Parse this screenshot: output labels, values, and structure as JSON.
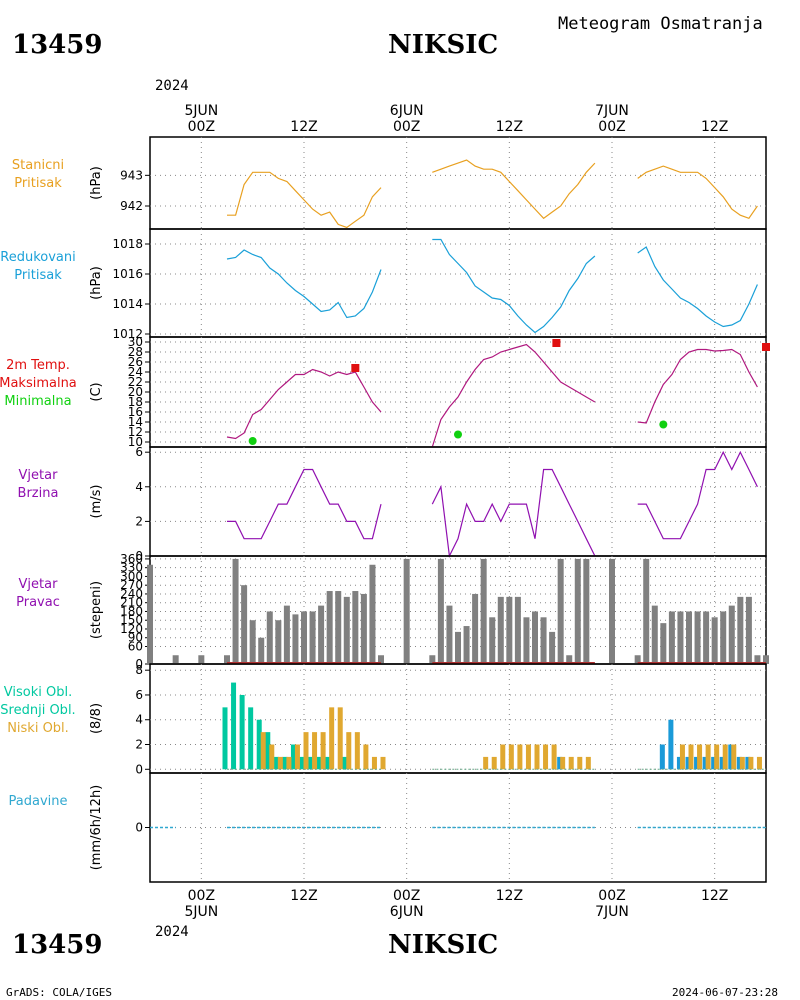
{
  "header": {
    "station_id": "13459",
    "station_name": "NIKSIC",
    "subtitle": "Meteogram Osmatranja",
    "year": "2024"
  },
  "footer": {
    "credit": "GrADS: COLA/IGES",
    "timestamp": "2024-06-07-23:28"
  },
  "time_axis": {
    "hours_range": [
      -6,
      66
    ],
    "top": [
      {
        "hour": 0,
        "lines": [
          "5JUN",
          "00Z"
        ]
      },
      {
        "hour": 12,
        "lines": [
          "12Z"
        ]
      },
      {
        "hour": 24,
        "lines": [
          "6JUN",
          "00Z"
        ]
      },
      {
        "hour": 36,
        "lines": [
          "12Z"
        ]
      },
      {
        "hour": 48,
        "lines": [
          "7JUN",
          "00Z"
        ]
      },
      {
        "hour": 60,
        "lines": [
          "12Z"
        ]
      }
    ],
    "bottom": [
      {
        "hour": 0,
        "lines": [
          "00Z",
          "5JUN"
        ]
      },
      {
        "hour": 12,
        "lines": [
          "12Z"
        ]
      },
      {
        "hour": 24,
        "lines": [
          "00Z",
          "6JUN"
        ]
      },
      {
        "hour": 36,
        "lines": [
          "12Z"
        ]
      },
      {
        "hour": 48,
        "lines": [
          "00Z",
          "7JUN"
        ]
      },
      {
        "hour": 60,
        "lines": [
          "12Z"
        ]
      }
    ]
  },
  "colors": {
    "pressure_station": "#e8a020",
    "pressure_reduced": "#1aa0d8",
    "temperature": "#b0187f",
    "tmax": "#e01010",
    "tmin": "#10d010",
    "wind": "#9010b0",
    "direction_bar": "#808080",
    "direction_base": "#b03030",
    "cloud_high": "#00c8a0",
    "cloud_mid": "#1a9ad8",
    "cloud_low": "#e0a830",
    "precip": "#30a8d0"
  },
  "chart_data": [
    {
      "id": "station-pressure",
      "type": "line",
      "labels": [
        "Stanicni",
        "Pritisak"
      ],
      "unit": "(hPa)",
      "ylim": [
        941.25,
        944.25
      ],
      "yticks": [
        942,
        943
      ],
      "series": [
        {
          "x": [
            3,
            4,
            5,
            6,
            7,
            8,
            9,
            10,
            11,
            12,
            13,
            14,
            15,
            16,
            17,
            18,
            19,
            20,
            21
          ],
          "y": [
            941.7,
            941.7,
            942.7,
            943.1,
            943.1,
            943.1,
            942.9,
            942.8,
            942.5,
            942.2,
            941.9,
            941.7,
            941.8,
            941.4,
            941.3,
            941.5,
            941.7,
            942.3,
            942.6
          ]
        },
        {
          "x": [
            27,
            28,
            29,
            30,
            31,
            32,
            33,
            34,
            35,
            36,
            37,
            38,
            39,
            40,
            41,
            42,
            43,
            44,
            45,
            46
          ],
          "y": [
            943.1,
            943.2,
            943.3,
            943.4,
            943.5,
            943.3,
            943.2,
            943.2,
            943.1,
            942.8,
            942.5,
            942.2,
            941.9,
            941.6,
            941.8,
            942.0,
            942.4,
            942.7,
            943.1,
            943.4
          ]
        },
        {
          "x": [
            51,
            52,
            53,
            54,
            55,
            56,
            57,
            58,
            59,
            60,
            61,
            62,
            63,
            64,
            65
          ],
          "y": [
            942.9,
            943.1,
            943.2,
            943.3,
            943.2,
            943.1,
            943.1,
            943.1,
            942.9,
            942.6,
            942.3,
            941.9,
            941.7,
            941.6,
            942.0
          ]
        }
      ]
    },
    {
      "id": "reduced-pressure",
      "type": "line",
      "labels": [
        "Redukovani",
        "Pritisak"
      ],
      "unit": "(hPa)",
      "ylim": [
        1011.8,
        1019
      ],
      "yticks": [
        1012,
        1014,
        1016,
        1018
      ],
      "series": [
        {
          "x": [
            3,
            4,
            5,
            6,
            7,
            8,
            9,
            10,
            11,
            12,
            13,
            14,
            15,
            16,
            17,
            18,
            19,
            20,
            21
          ],
          "y": [
            1017.0,
            1017.1,
            1017.6,
            1017.3,
            1017.1,
            1016.4,
            1016.0,
            1015.4,
            1014.9,
            1014.5,
            1014.0,
            1013.5,
            1013.6,
            1014.1,
            1013.1,
            1013.2,
            1013.7,
            1014.8,
            1016.3
          ]
        },
        {
          "x": [
            27,
            28,
            29,
            30,
            31,
            32,
            33,
            34,
            35,
            36,
            37,
            38,
            39,
            40,
            41,
            42,
            43,
            44,
            45,
            46
          ],
          "y": [
            1018.3,
            1018.3,
            1017.3,
            1016.7,
            1016.1,
            1015.2,
            1014.8,
            1014.4,
            1014.3,
            1013.9,
            1013.2,
            1012.6,
            1012.1,
            1012.5,
            1013.1,
            1013.8,
            1014.9,
            1015.7,
            1016.7,
            1017.2
          ]
        },
        {
          "x": [
            51,
            52,
            53,
            54,
            55,
            56,
            57,
            58,
            59,
            60,
            61,
            62,
            63,
            64,
            65
          ],
          "y": [
            1017.4,
            1017.8,
            1016.5,
            1015.6,
            1015.0,
            1014.4,
            1014.1,
            1013.7,
            1013.2,
            1012.8,
            1012.5,
            1012.6,
            1012.9,
            1014.0,
            1015.3
          ]
        }
      ]
    },
    {
      "id": "temperature",
      "type": "line",
      "labels": [
        "2m Temp.",
        "Maksimalna",
        "Minimalna"
      ],
      "unit": "(C)",
      "ylim": [
        9,
        31
      ],
      "yticks": [
        10,
        12,
        14,
        16,
        18,
        20,
        22,
        24,
        26,
        28,
        30
      ],
      "series": [
        {
          "x": [
            3,
            4,
            5,
            6,
            7,
            8,
            9,
            10,
            11,
            12,
            13,
            14,
            15,
            16,
            17,
            18,
            19,
            20,
            21
          ],
          "y": [
            11.0,
            10.7,
            11.8,
            15.5,
            16.5,
            18.5,
            20.5,
            22.0,
            23.5,
            23.5,
            24.5,
            24.0,
            23.2,
            24.0,
            23.5,
            24.0,
            21.0,
            18.0,
            16.0
          ]
        },
        {
          "x": [
            27,
            28,
            29,
            30,
            31,
            32,
            33,
            34,
            35,
            36,
            37,
            38,
            39,
            40,
            41,
            42,
            43,
            44,
            45,
            46
          ],
          "y": [
            8.0,
            14.5,
            17.0,
            19.0,
            22.0,
            24.5,
            26.5,
            27.0,
            28.0,
            28.5,
            29.0,
            29.5,
            28.0,
            26.0,
            24.0,
            22.0,
            21.0,
            20.0,
            19.0,
            18.0
          ]
        },
        {
          "x": [
            51,
            52,
            53,
            54,
            55,
            56,
            57,
            58,
            59,
            60,
            61,
            62,
            63,
            64,
            65
          ],
          "y": [
            14.0,
            13.8,
            18.0,
            21.5,
            23.5,
            26.5,
            28.0,
            28.5,
            28.5,
            28.2,
            28.3,
            28.5,
            27.5,
            24.0,
            21.0
          ]
        }
      ],
      "tmax": [
        {
          "x": 18,
          "y": 24.8
        },
        {
          "x": 41.5,
          "y": 29.8
        },
        {
          "x": 66,
          "y": 29
        }
      ],
      "tmin": [
        {
          "x": 6,
          "y": 10.2
        },
        {
          "x": 30,
          "y": 11.5
        },
        {
          "x": 54,
          "y": 13.5
        }
      ]
    },
    {
      "id": "wind-speed",
      "type": "line",
      "labels": [
        "Vjetar",
        "Brzina"
      ],
      "unit": "(m/s)",
      "ylim": [
        0,
        6.3
      ],
      "yticks": [
        0,
        2,
        4,
        6
      ],
      "series": [
        {
          "x": [
            3,
            4,
            5,
            6,
            7,
            8,
            9,
            10,
            11,
            12,
            13,
            14,
            15,
            16,
            17,
            18,
            19,
            20,
            21
          ],
          "y": [
            2,
            2,
            1,
            1,
            1,
            2,
            3,
            3,
            4,
            5,
            5,
            4,
            3,
            3,
            2,
            2,
            1,
            1,
            3
          ]
        },
        {
          "x": [
            27,
            28,
            29,
            30,
            31,
            32,
            33,
            34,
            35,
            36,
            37,
            38,
            39,
            40,
            41,
            42,
            43,
            44,
            45,
            46
          ],
          "y": [
            3,
            4,
            0,
            1,
            3,
            2,
            2,
            3,
            2,
            3,
            3,
            3,
            1,
            5,
            5,
            4,
            3,
            2,
            1,
            0
          ]
        },
        {
          "x": [
            51,
            52,
            53,
            54,
            55,
            56,
            57,
            58,
            59,
            60,
            61,
            62,
            63,
            64,
            65
          ],
          "y": [
            3,
            3,
            2,
            1,
            1,
            1,
            2,
            3,
            5,
            5,
            6,
            5,
            6,
            5,
            4
          ]
        }
      ]
    },
    {
      "id": "wind-direction",
      "type": "bar",
      "labels": [
        "Vjetar",
        "Pravac"
      ],
      "unit": "(stepeni)",
      "ylim": [
        0,
        370
      ],
      "yticks": [
        0,
        60,
        90,
        120,
        150,
        180,
        210,
        240,
        270,
        300,
        330,
        360
      ],
      "ytick_labels": [
        "0",
        "60",
        "90",
        "120",
        "150",
        "180",
        "210",
        "240",
        "270",
        "300",
        "330",
        "360"
      ],
      "x": [
        -6,
        -3,
        0,
        3,
        4,
        5,
        6,
        7,
        8,
        9,
        10,
        11,
        12,
        13,
        14,
        15,
        16,
        17,
        18,
        19,
        20,
        21,
        24,
        27,
        28,
        29,
        30,
        31,
        32,
        33,
        34,
        35,
        36,
        37,
        38,
        39,
        40,
        41,
        42,
        43,
        44,
        45,
        48,
        51,
        52,
        53,
        54,
        55,
        56,
        57,
        58,
        59,
        60,
        61,
        62,
        63,
        64,
        65,
        66
      ],
      "values": [
        340,
        30,
        30,
        30,
        360,
        270,
        150,
        90,
        180,
        150,
        200,
        170,
        180,
        180,
        200,
        250,
        250,
        230,
        250,
        240,
        340,
        30,
        360,
        30,
        360,
        200,
        110,
        130,
        240,
        360,
        160,
        230,
        230,
        230,
        160,
        180,
        160,
        110,
        360,
        30,
        360,
        360,
        360,
        30,
        360,
        200,
        140,
        180,
        180,
        180,
        180,
        180,
        160,
        180,
        200,
        230,
        230,
        30,
        30
      ]
    },
    {
      "id": "clouds",
      "type": "bar",
      "labels": [
        "Visoki Obl.",
        "Srednji Obl.",
        "Niski Obl."
      ],
      "unit": "(8/8)",
      "ylim": [
        -0.3,
        8.5
      ],
      "yticks": [
        0,
        2,
        4,
        6,
        8
      ],
      "high": {
        "x": [
          3,
          4,
          5,
          6,
          7,
          8,
          9,
          10,
          11,
          12,
          13,
          14,
          15,
          16,
          17
        ],
        "values": [
          5,
          7,
          6,
          5,
          4,
          3,
          1,
          1,
          2,
          1,
          1,
          1,
          1,
          0,
          1
        ]
      },
      "mid": {
        "x": [
          36,
          37,
          38,
          39,
          40,
          41,
          42,
          43,
          44,
          45,
          54,
          55,
          56,
          57,
          58,
          59,
          60,
          61,
          62,
          63,
          64
        ],
        "values": [
          0,
          0,
          0,
          0,
          0,
          0,
          1,
          0,
          0,
          0,
          2,
          4,
          1,
          1,
          1,
          1,
          1,
          1,
          2,
          1,
          1
        ]
      },
      "low": {
        "x": [
          7,
          8,
          9,
          10,
          11,
          12,
          13,
          14,
          15,
          16,
          17,
          18,
          19,
          20,
          21,
          33,
          34,
          35,
          36,
          37,
          38,
          39,
          40,
          41,
          42,
          43,
          44,
          45,
          56,
          57,
          58,
          59,
          60,
          61,
          62,
          63,
          64,
          65
        ],
        "values": [
          3,
          2,
          1,
          1,
          2,
          3,
          3,
          3,
          5,
          5,
          3,
          3,
          2,
          1,
          1,
          1,
          1,
          2,
          2,
          2,
          2,
          2,
          2,
          2,
          1,
          1,
          1,
          1,
          2,
          2,
          2,
          2,
          2,
          2,
          2,
          1,
          1,
          1
        ]
      }
    },
    {
      "id": "precipitation",
      "type": "line",
      "labels": [
        "Padavine"
      ],
      "unit": "(mm/6h/12h)",
      "ylim": [
        -1,
        1
      ],
      "yticks": [
        0
      ],
      "segments": [
        [
          -6,
          -3
        ],
        [
          3,
          21
        ],
        [
          27,
          46
        ],
        [
          51,
          66
        ]
      ],
      "value": 0
    }
  ]
}
